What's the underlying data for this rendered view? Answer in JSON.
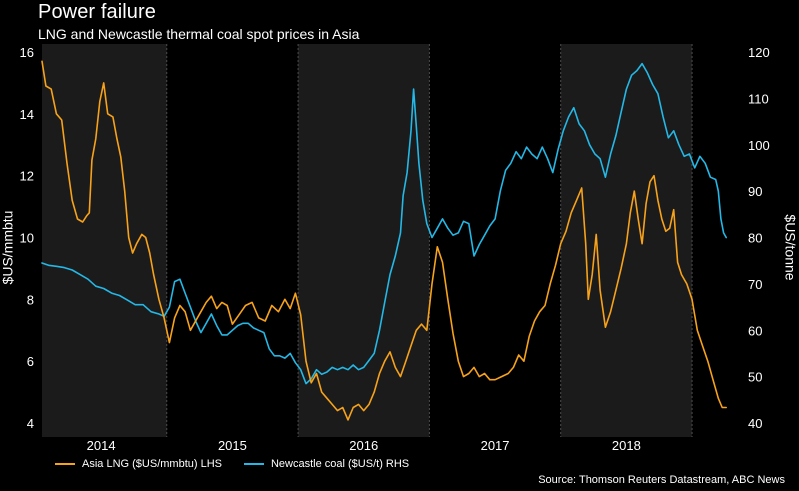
{
  "header": {
    "title": "Power failure",
    "subtitle": "LNG and Newcastle thermal coal spot prices in Asia"
  },
  "source": "Source: Thomson Reuters Datastream, ABC News",
  "colors": {
    "background": "#000000",
    "shaded_band": "#1b1b1b",
    "lng": "#f7a21b",
    "coal": "#24b8e6",
    "text": "#ffffff",
    "divider": "#4d4d4d"
  },
  "chart_data": {
    "type": "line",
    "title": "Power failure",
    "subtitle": "LNG and Newcastle thermal coal spot prices in Asia",
    "x_range": [
      2013.55,
      2018.85
    ],
    "x_tick_labels": [
      "2014",
      "2015",
      "2016",
      "2017",
      "2018"
    ],
    "x_tick_positions": [
      2014.0,
      2015.0,
      2016.0,
      2017.0,
      2018.0
    ],
    "shaded_years": [
      [
        2013.55,
        2014.5
      ],
      [
        2015.5,
        2016.5
      ],
      [
        2017.5,
        2018.5
      ]
    ],
    "ylabel_left": "$US/mmbtu",
    "ylabel_right": "$US/tonne",
    "ylim_left": [
      4,
      16
    ],
    "ylim_right": [
      40,
      120
    ],
    "yticks_left": [
      "4",
      "6",
      "8",
      "10",
      "12",
      "14",
      "16"
    ],
    "yticks_right": [
      "40",
      "50",
      "60",
      "70",
      "80",
      "90",
      "100",
      "110",
      "120"
    ],
    "grid": false,
    "legend_position": "bottom-left",
    "series": [
      {
        "name": "Asia LNG ($US/mmbtu) LHS",
        "axis": "left",
        "color": "#f7a21b",
        "points": [
          [
            2013.55,
            15.7
          ],
          [
            2013.58,
            14.9
          ],
          [
            2013.62,
            14.8
          ],
          [
            2013.66,
            14.0
          ],
          [
            2013.7,
            13.8
          ],
          [
            2013.74,
            12.4
          ],
          [
            2013.78,
            11.2
          ],
          [
            2013.82,
            10.6
          ],
          [
            2013.86,
            10.5
          ],
          [
            2013.89,
            10.7
          ],
          [
            2013.91,
            10.8
          ],
          [
            2013.93,
            12.5
          ],
          [
            2013.96,
            13.2
          ],
          [
            2013.99,
            14.4
          ],
          [
            2014.02,
            15.0
          ],
          [
            2014.05,
            14.0
          ],
          [
            2014.09,
            13.9
          ],
          [
            2014.12,
            13.2
          ],
          [
            2014.15,
            12.6
          ],
          [
            2014.18,
            11.5
          ],
          [
            2014.21,
            10.0
          ],
          [
            2014.24,
            9.5
          ],
          [
            2014.27,
            9.8
          ],
          [
            2014.31,
            10.1
          ],
          [
            2014.34,
            10.0
          ],
          [
            2014.37,
            9.5
          ],
          [
            2014.4,
            8.8
          ],
          [
            2014.44,
            8.0
          ],
          [
            2014.48,
            7.4
          ],
          [
            2014.52,
            6.6
          ],
          [
            2014.56,
            7.4
          ],
          [
            2014.6,
            7.8
          ],
          [
            2014.64,
            7.6
          ],
          [
            2014.68,
            7.0
          ],
          [
            2014.72,
            7.3
          ],
          [
            2014.76,
            7.6
          ],
          [
            2014.8,
            7.9
          ],
          [
            2014.84,
            8.1
          ],
          [
            2014.88,
            7.7
          ],
          [
            2014.92,
            7.9
          ],
          [
            2014.96,
            7.8
          ],
          [
            2015.0,
            7.2
          ],
          [
            2015.05,
            7.5
          ],
          [
            2015.1,
            7.8
          ],
          [
            2015.15,
            7.9
          ],
          [
            2015.2,
            7.4
          ],
          [
            2015.25,
            7.3
          ],
          [
            2015.3,
            7.8
          ],
          [
            2015.35,
            7.6
          ],
          [
            2015.4,
            8.0
          ],
          [
            2015.44,
            7.7
          ],
          [
            2015.48,
            8.2
          ],
          [
            2015.52,
            7.5
          ],
          [
            2015.56,
            6.0
          ],
          [
            2015.6,
            5.3
          ],
          [
            2015.64,
            5.6
          ],
          [
            2015.68,
            5.0
          ],
          [
            2015.72,
            4.8
          ],
          [
            2015.76,
            4.6
          ],
          [
            2015.8,
            4.4
          ],
          [
            2015.84,
            4.5
          ],
          [
            2015.88,
            4.1
          ],
          [
            2015.92,
            4.5
          ],
          [
            2015.96,
            4.6
          ],
          [
            2016.0,
            4.4
          ],
          [
            2016.04,
            4.6
          ],
          [
            2016.08,
            5.0
          ],
          [
            2016.12,
            5.6
          ],
          [
            2016.16,
            6.0
          ],
          [
            2016.2,
            6.3
          ],
          [
            2016.24,
            5.8
          ],
          [
            2016.28,
            5.5
          ],
          [
            2016.32,
            6.0
          ],
          [
            2016.36,
            6.5
          ],
          [
            2016.4,
            7.0
          ],
          [
            2016.44,
            7.2
          ],
          [
            2016.48,
            7.0
          ],
          [
            2016.52,
            8.5
          ],
          [
            2016.56,
            9.7
          ],
          [
            2016.6,
            9.2
          ],
          [
            2016.64,
            8.0
          ],
          [
            2016.68,
            6.9
          ],
          [
            2016.72,
            6.0
          ],
          [
            2016.76,
            5.5
          ],
          [
            2016.8,
            5.6
          ],
          [
            2016.84,
            5.8
          ],
          [
            2016.88,
            5.5
          ],
          [
            2016.92,
            5.6
          ],
          [
            2016.96,
            5.4
          ],
          [
            2017.0,
            5.4
          ],
          [
            2017.05,
            5.5
          ],
          [
            2017.1,
            5.6
          ],
          [
            2017.14,
            5.8
          ],
          [
            2017.18,
            6.2
          ],
          [
            2017.22,
            6.0
          ],
          [
            2017.26,
            6.8
          ],
          [
            2017.3,
            7.3
          ],
          [
            2017.34,
            7.6
          ],
          [
            2017.38,
            7.8
          ],
          [
            2017.42,
            8.5
          ],
          [
            2017.46,
            9.1
          ],
          [
            2017.5,
            9.8
          ],
          [
            2017.54,
            10.2
          ],
          [
            2017.58,
            10.8
          ],
          [
            2017.62,
            11.2
          ],
          [
            2017.66,
            11.6
          ],
          [
            2017.69,
            9.8
          ],
          [
            2017.71,
            8.0
          ],
          [
            2017.74,
            8.8
          ],
          [
            2017.77,
            10.1
          ],
          [
            2017.8,
            8.3
          ],
          [
            2017.84,
            7.1
          ],
          [
            2017.88,
            7.6
          ],
          [
            2017.92,
            8.3
          ],
          [
            2017.96,
            9.0
          ],
          [
            2018.0,
            9.8
          ],
          [
            2018.03,
            10.8
          ],
          [
            2018.06,
            11.5
          ],
          [
            2018.09,
            10.6
          ],
          [
            2018.12,
            9.8
          ],
          [
            2018.15,
            11.1
          ],
          [
            2018.18,
            11.8
          ],
          [
            2018.21,
            12.0
          ],
          [
            2018.24,
            11.2
          ],
          [
            2018.27,
            10.6
          ],
          [
            2018.3,
            10.2
          ],
          [
            2018.33,
            10.3
          ],
          [
            2018.36,
            10.9
          ],
          [
            2018.39,
            9.2
          ],
          [
            2018.42,
            8.8
          ],
          [
            2018.46,
            8.5
          ],
          [
            2018.5,
            8.0
          ],
          [
            2018.54,
            7.0
          ],
          [
            2018.58,
            6.5
          ],
          [
            2018.62,
            6.0
          ],
          [
            2018.66,
            5.4
          ],
          [
            2018.7,
            4.8
          ],
          [
            2018.73,
            4.5
          ],
          [
            2018.76,
            4.5
          ]
        ]
      },
      {
        "name": "Newcastle coal ($US/t) RHS",
        "axis": "right",
        "color": "#24b8e6",
        "points": [
          [
            2013.55,
            74.5
          ],
          [
            2013.6,
            74.0
          ],
          [
            2013.66,
            73.8
          ],
          [
            2013.72,
            73.5
          ],
          [
            2013.78,
            73.0
          ],
          [
            2013.84,
            72.0
          ],
          [
            2013.9,
            71.0
          ],
          [
            2013.96,
            69.5
          ],
          [
            2014.02,
            69.0
          ],
          [
            2014.08,
            68.0
          ],
          [
            2014.14,
            67.5
          ],
          [
            2014.2,
            66.5
          ],
          [
            2014.26,
            65.5
          ],
          [
            2014.32,
            65.5
          ],
          [
            2014.38,
            64.0
          ],
          [
            2014.44,
            63.5
          ],
          [
            2014.48,
            63.0
          ],
          [
            2014.52,
            65.0
          ],
          [
            2014.56,
            70.5
          ],
          [
            2014.6,
            71.0
          ],
          [
            2014.64,
            68.0
          ],
          [
            2014.68,
            65.0
          ],
          [
            2014.72,
            62.0
          ],
          [
            2014.76,
            59.5
          ],
          [
            2014.8,
            61.5
          ],
          [
            2014.84,
            63.5
          ],
          [
            2014.88,
            61.0
          ],
          [
            2014.92,
            59.0
          ],
          [
            2014.96,
            59.0
          ],
          [
            2015.0,
            60.0
          ],
          [
            2015.04,
            61.0
          ],
          [
            2015.08,
            61.5
          ],
          [
            2015.12,
            61.5
          ],
          [
            2015.16,
            60.5
          ],
          [
            2015.2,
            60.0
          ],
          [
            2015.24,
            59.5
          ],
          [
            2015.28,
            56.0
          ],
          [
            2015.32,
            54.5
          ],
          [
            2015.36,
            54.5
          ],
          [
            2015.4,
            54.0
          ],
          [
            2015.44,
            55.0
          ],
          [
            2015.48,
            53.0
          ],
          [
            2015.52,
            51.5
          ],
          [
            2015.56,
            48.5
          ],
          [
            2015.6,
            49.5
          ],
          [
            2015.64,
            51.5
          ],
          [
            2015.68,
            50.5
          ],
          [
            2015.72,
            51.0
          ],
          [
            2015.76,
            52.0
          ],
          [
            2015.8,
            51.5
          ],
          [
            2015.84,
            52.0
          ],
          [
            2015.88,
            51.5
          ],
          [
            2015.92,
            52.5
          ],
          [
            2015.96,
            51.5
          ],
          [
            2016.0,
            52.0
          ],
          [
            2016.04,
            53.5
          ],
          [
            2016.08,
            55.0
          ],
          [
            2016.12,
            60.0
          ],
          [
            2016.16,
            66.0
          ],
          [
            2016.2,
            72.0
          ],
          [
            2016.24,
            76.0
          ],
          [
            2016.28,
            81.0
          ],
          [
            2016.3,
            89.0
          ],
          [
            2016.33,
            94.0
          ],
          [
            2016.36,
            103.0
          ],
          [
            2016.38,
            112.0
          ],
          [
            2016.4,
            104.0
          ],
          [
            2016.42,
            96.0
          ],
          [
            2016.45,
            88.0
          ],
          [
            2016.48,
            83.0
          ],
          [
            2016.52,
            80.0
          ],
          [
            2016.56,
            82.0
          ],
          [
            2016.6,
            84.0
          ],
          [
            2016.64,
            82.0
          ],
          [
            2016.68,
            80.5
          ],
          [
            2016.72,
            81.0
          ],
          [
            2016.76,
            83.5
          ],
          [
            2016.8,
            83.0
          ],
          [
            2016.84,
            76.0
          ],
          [
            2016.88,
            78.5
          ],
          [
            2016.92,
            80.5
          ],
          [
            2016.96,
            82.5
          ],
          [
            2017.0,
            84.0
          ],
          [
            2017.04,
            90.0
          ],
          [
            2017.08,
            94.5
          ],
          [
            2017.12,
            96.0
          ],
          [
            2017.16,
            98.5
          ],
          [
            2017.2,
            97.0
          ],
          [
            2017.24,
            99.5
          ],
          [
            2017.28,
            98.0
          ],
          [
            2017.32,
            97.0
          ],
          [
            2017.36,
            99.5
          ],
          [
            2017.4,
            97.0
          ],
          [
            2017.44,
            94.0
          ],
          [
            2017.48,
            99.0
          ],
          [
            2017.52,
            103.0
          ],
          [
            2017.56,
            106.0
          ],
          [
            2017.6,
            108.0
          ],
          [
            2017.64,
            104.5
          ],
          [
            2017.68,
            103.0
          ],
          [
            2017.72,
            100.0
          ],
          [
            2017.76,
            98.0
          ],
          [
            2017.8,
            97.0
          ],
          [
            2017.84,
            93.0
          ],
          [
            2017.88,
            98.0
          ],
          [
            2017.92,
            102.0
          ],
          [
            2017.96,
            107.0
          ],
          [
            2018.0,
            112.0
          ],
          [
            2018.04,
            115.0
          ],
          [
            2018.08,
            116.0
          ],
          [
            2018.12,
            117.5
          ],
          [
            2018.16,
            115.5
          ],
          [
            2018.2,
            113.0
          ],
          [
            2018.24,
            111.0
          ],
          [
            2018.28,
            106.0
          ],
          [
            2018.32,
            101.5
          ],
          [
            2018.36,
            103.0
          ],
          [
            2018.4,
            100.0
          ],
          [
            2018.44,
            97.5
          ],
          [
            2018.48,
            98.0
          ],
          [
            2018.52,
            95.0
          ],
          [
            2018.56,
            97.5
          ],
          [
            2018.6,
            96.0
          ],
          [
            2018.64,
            93.0
          ],
          [
            2018.68,
            92.5
          ],
          [
            2018.7,
            90.0
          ],
          [
            2018.72,
            84.0
          ],
          [
            2018.74,
            81.0
          ],
          [
            2018.76,
            80.0
          ]
        ]
      }
    ]
  },
  "legend": {
    "items": [
      {
        "label": "Asia LNG ($US/mmbtu) LHS",
        "color": "#f7a21b"
      },
      {
        "label": "Newcastle coal ($US/t) RHS",
        "color": "#24b8e6"
      }
    ]
  }
}
